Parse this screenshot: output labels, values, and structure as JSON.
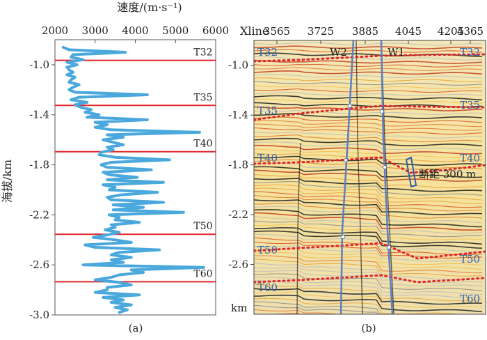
{
  "chart_data": [
    {
      "type": "line",
      "panel_label": "(a)",
      "xlabel": "速度/(m·s⁻¹)",
      "ylabel": "海拔/km",
      "xlim": [
        2000,
        6000
      ],
      "ylim": [
        -3.0,
        -0.8
      ],
      "x_ticks": [
        "2000",
        "3000",
        "4000",
        "5000",
        "6000"
      ],
      "y_ticks": [
        "-1.0",
        "-1.4",
        "-1.8",
        "-2.2",
        "-2.6",
        "-3.0"
      ],
      "x_axis_position": "top",
      "line_color": "#4aa8dc",
      "horizon_color": "#e1252b",
      "horizons": [
        {
          "name": "T32",
          "depth": -0.965
        },
        {
          "name": "T35",
          "depth": -1.325
        },
        {
          "name": "T40",
          "depth": -1.695
        },
        {
          "name": "T50",
          "depth": -2.355
        },
        {
          "name": "T60",
          "depth": -2.735
        }
      ],
      "series": [
        {
          "depth": [
            -0.86,
            -0.88,
            -0.9,
            -0.92,
            -0.94,
            -0.96,
            -0.98,
            -1.0,
            -1.02,
            -1.04,
            -1.06,
            -1.08,
            -1.1,
            -1.12,
            -1.14,
            -1.16,
            -1.18,
            -1.2,
            -1.22,
            -1.24,
            -1.26,
            -1.28,
            -1.3,
            -1.32,
            -1.34,
            -1.36,
            -1.38,
            -1.4,
            -1.42,
            -1.44,
            -1.46,
            -1.48,
            -1.5,
            -1.52,
            -1.54,
            -1.56,
            -1.58,
            -1.6,
            -1.62,
            -1.64,
            -1.66,
            -1.68,
            -1.7,
            -1.72,
            -1.74,
            -1.76,
            -1.78,
            -1.8,
            -1.82,
            -1.84,
            -1.86,
            -1.88,
            -1.9,
            -1.92,
            -1.94,
            -1.96,
            -1.98,
            -2.0,
            -2.02,
            -2.04,
            -2.06,
            -2.08,
            -2.1,
            -2.12,
            -2.14,
            -2.16,
            -2.18,
            -2.2,
            -2.22,
            -2.24,
            -2.26,
            -2.28,
            -2.3,
            -2.32,
            -2.34,
            -2.36,
            -2.38,
            -2.4,
            -2.42,
            -2.44,
            -2.46,
            -2.48,
            -2.5,
            -2.52,
            -2.54,
            -2.56,
            -2.58,
            -2.6,
            -2.62,
            -2.64,
            -2.66,
            -2.68,
            -2.7,
            -2.72,
            -2.74,
            -2.76,
            -2.78,
            -2.8,
            -2.82,
            -2.84,
            -2.86,
            -2.88,
            -2.9,
            -2.92,
            -2.94,
            -2.96,
            -2.98
          ],
          "velocity": [
            2200,
            2350,
            3750,
            2450,
            2400,
            2700,
            2300,
            2550,
            2300,
            2350,
            2450,
            2300,
            2500,
            2400,
            2350,
            2600,
            2450,
            2350,
            2500,
            4300,
            2600,
            2400,
            2800,
            2500,
            2650,
            2900,
            2750,
            3100,
            2800,
            4300,
            3000,
            3300,
            3000,
            3400,
            5600,
            3300,
            3700,
            3200,
            3450,
            3700,
            3300,
            3450,
            3150,
            3100,
            3500,
            4850,
            3400,
            3150,
            3300,
            4400,
            3200,
            3350,
            4050,
            3300,
            4700,
            3200,
            3500,
            3350,
            4550,
            3650,
            3300,
            3400,
            4700,
            3450,
            4200,
            3450,
            5200,
            3350,
            3600,
            3500,
            4100,
            3400,
            3500,
            3250,
            3600,
            3300,
            2950,
            3500,
            3900,
            2750,
            3000,
            4600,
            3600,
            3400,
            3900,
            3400,
            3700,
            2700,
            5700,
            3900,
            4200,
            3600,
            3400,
            3000,
            3600,
            3900,
            3300,
            3300,
            3000,
            4100,
            3200,
            3700,
            3400,
            3900,
            3500,
            3800,
            3600
          ]
        }
      ]
    },
    {
      "type": "heatmap",
      "panel_label": "(b)",
      "x_axis_title": "Xline",
      "x_ticks": [
        "3565",
        "3725",
        "3885",
        "4045",
        "4205",
        "4365"
      ],
      "y_ticks": [
        "-1.0",
        "-1.4",
        "-1.8",
        "-2.2",
        "-2.6"
      ],
      "y_unit": "km",
      "ylim": [
        -3.0,
        -0.8
      ],
      "wells": [
        "W2",
        "W1"
      ],
      "horizon_labels_left": [
        "T32",
        "T35",
        "T40",
        "T50",
        "T60"
      ],
      "horizon_labels_right": [
        "T32",
        "T35",
        "T40",
        "T50",
        "T60"
      ],
      "annotation": "断距 300 m",
      "well_color": "#5b7fc0",
      "horizon_line_color": "#e1252b",
      "label_color": "#2f5fa8"
    }
  ]
}
